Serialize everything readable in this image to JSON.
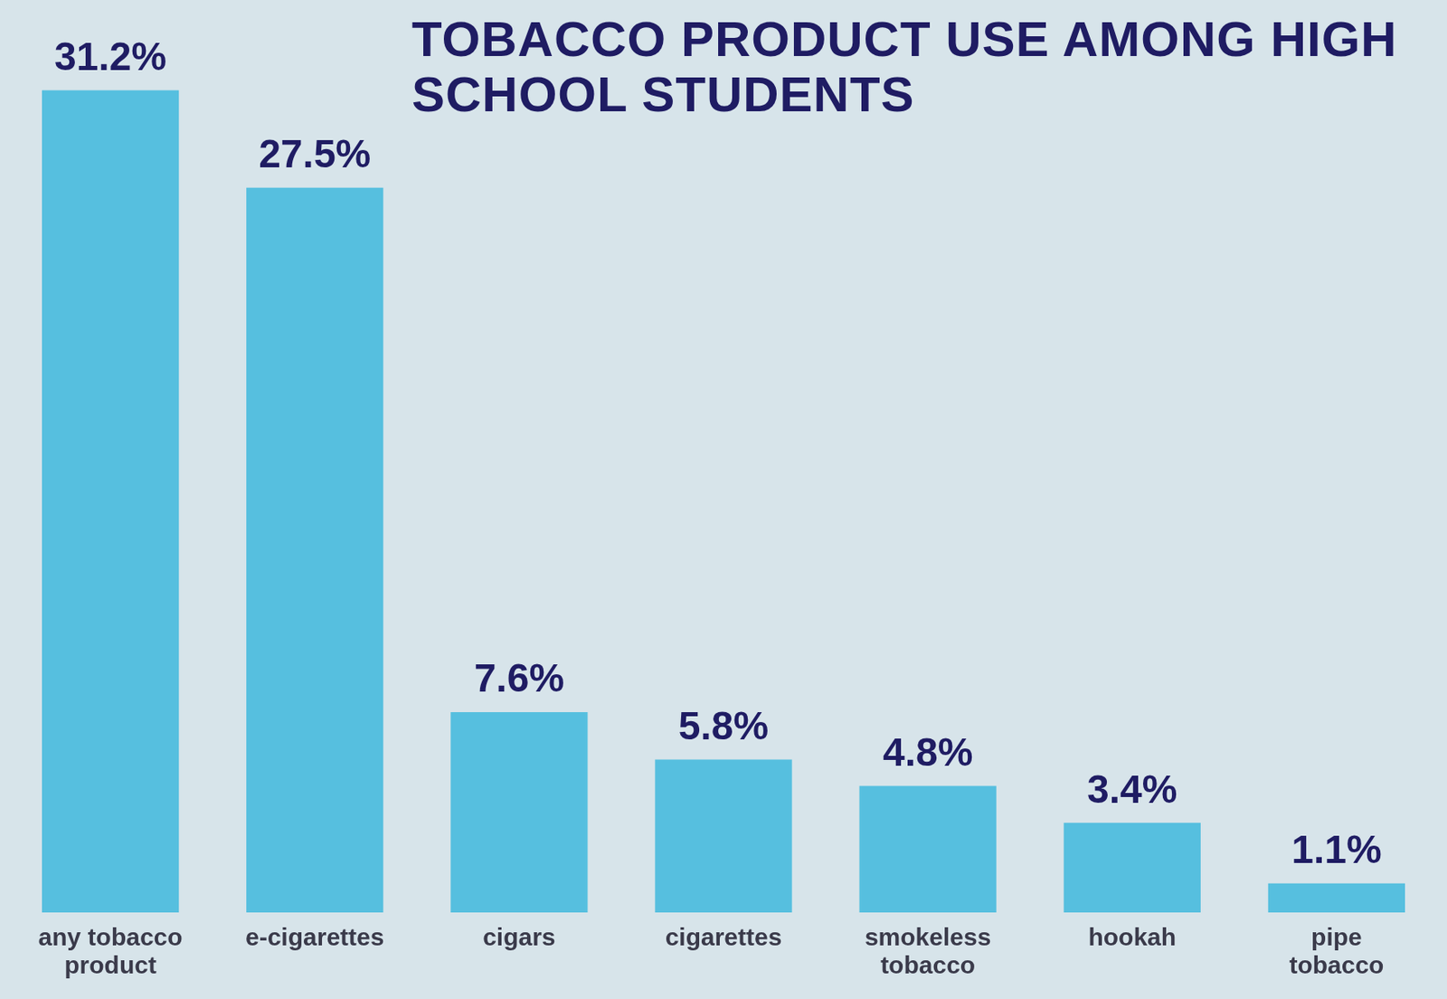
{
  "chart_data": {
    "type": "bar",
    "title": "TOBACCO PRODUCT USE AMONG HIGH SCHOOL STUDENTS",
    "categories": [
      "any tobacco product",
      "e-cigarettes",
      "cigars",
      "cigarettes",
      "smokeless tobacco",
      "hookah",
      "pipe tobacco"
    ],
    "values": [
      31.2,
      27.5,
      7.6,
      5.8,
      4.8,
      3.4,
      1.1
    ],
    "value_labels": [
      "31.2%",
      "27.5%",
      "7.6%",
      "5.8%",
      "4.8%",
      "3.4%",
      "1.1%"
    ],
    "color": "#56bfdf",
    "ylim": [
      0,
      34
    ],
    "grid": false,
    "data_labels": true,
    "tick_labels": "x"
  }
}
